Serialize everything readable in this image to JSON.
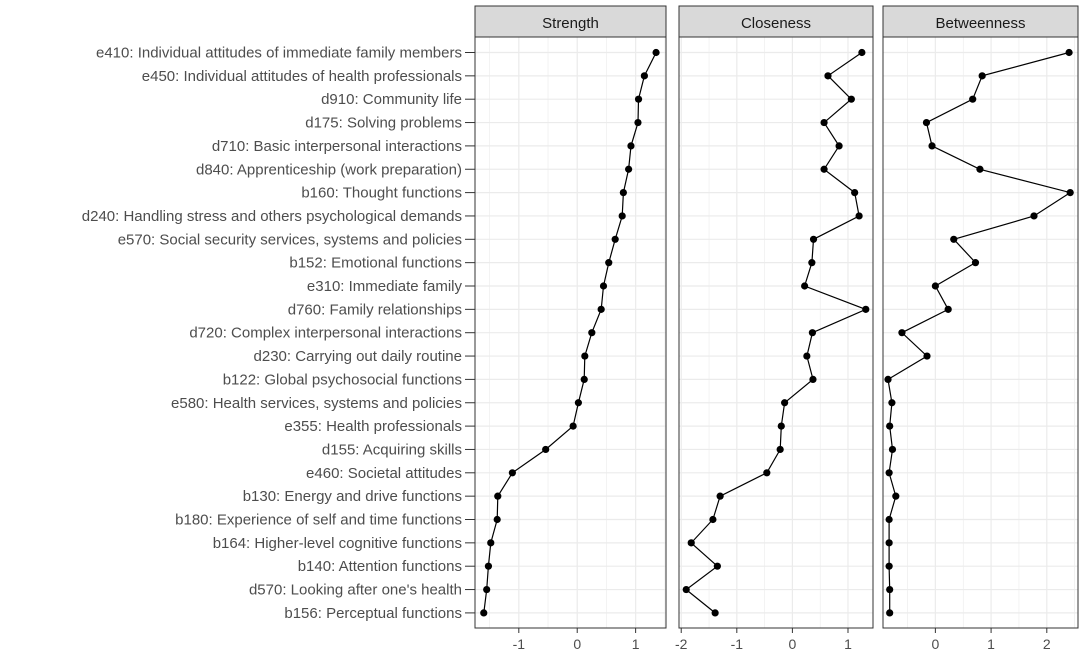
{
  "chart_data": {
    "type": "line",
    "panels": [
      "Strength",
      "Closeness",
      "Betweenness"
    ],
    "categories": [
      "e410: Individual attitudes of immediate family members",
      "e450: Individual attitudes of health professionals",
      "d910: Community life",
      "d175: Solving problems",
      "d710: Basic interpersonal interactions",
      "d840: Apprenticeship (work preparation)",
      "b160: Thought functions",
      "d240: Handling stress and others psychological demands",
      "e570: Social security services, systems and policies",
      "b152: Emotional functions",
      "e310: Immediate family",
      "d760: Family relationships",
      "d720: Complex interpersonal interactions",
      "d230: Carrying out daily routine",
      "b122: Global psychosocial functions",
      "e580: Health services, systems and policies",
      "e355: Health professionals",
      "d155: Acquiring skills",
      "e460: Societal attitudes",
      "b130: Energy and drive functions",
      "b180: Experience of self and time functions",
      "b164: Higher-level cognitive functions",
      "b140: Attention functions",
      "d570: Looking after one's health",
      "b156: Perceptual functions"
    ],
    "series": [
      {
        "name": "Strength",
        "values": [
          1.35,
          1.15,
          1.05,
          1.04,
          0.92,
          0.88,
          0.79,
          0.77,
          0.65,
          0.54,
          0.45,
          0.41,
          0.25,
          0.13,
          0.12,
          0.02,
          -0.07,
          -0.54,
          -1.11,
          -1.36,
          -1.37,
          -1.48,
          -1.52,
          -1.55,
          -1.6
        ]
      },
      {
        "name": "Closeness",
        "values": [
          1.25,
          0.64,
          1.06,
          0.57,
          0.84,
          0.57,
          1.12,
          1.2,
          0.38,
          0.35,
          0.22,
          1.32,
          0.36,
          0.26,
          0.37,
          -0.14,
          -0.2,
          -0.22,
          -0.46,
          -1.3,
          -1.43,
          -1.82,
          -1.35,
          -1.91,
          -1.39
        ]
      },
      {
        "name": "Betweenness",
        "values": [
          2.4,
          0.84,
          0.67,
          -0.16,
          -0.06,
          0.8,
          2.42,
          1.77,
          0.33,
          0.72,
          0.0,
          0.23,
          -0.6,
          -0.15,
          -0.85,
          -0.78,
          -0.82,
          -0.77,
          -0.83,
          -0.71,
          -0.83,
          -0.83,
          -0.83,
          -0.82,
          -0.82
        ]
      }
    ],
    "xlim": {
      "Strength": [
        -1.75,
        1.52
      ],
      "Closeness": [
        -2.04,
        1.45
      ],
      "Betweenness": [
        -0.94,
        2.56
      ]
    },
    "xticks": {
      "Strength": [
        "-1",
        "0",
        "1"
      ],
      "Closeness": [
        "-2",
        "-1",
        "0",
        "1"
      ],
      "Betweenness": [
        "0",
        "1",
        "2"
      ]
    },
    "ylabel": "",
    "xlabel": "",
    "grid": true,
    "legend": "none"
  }
}
